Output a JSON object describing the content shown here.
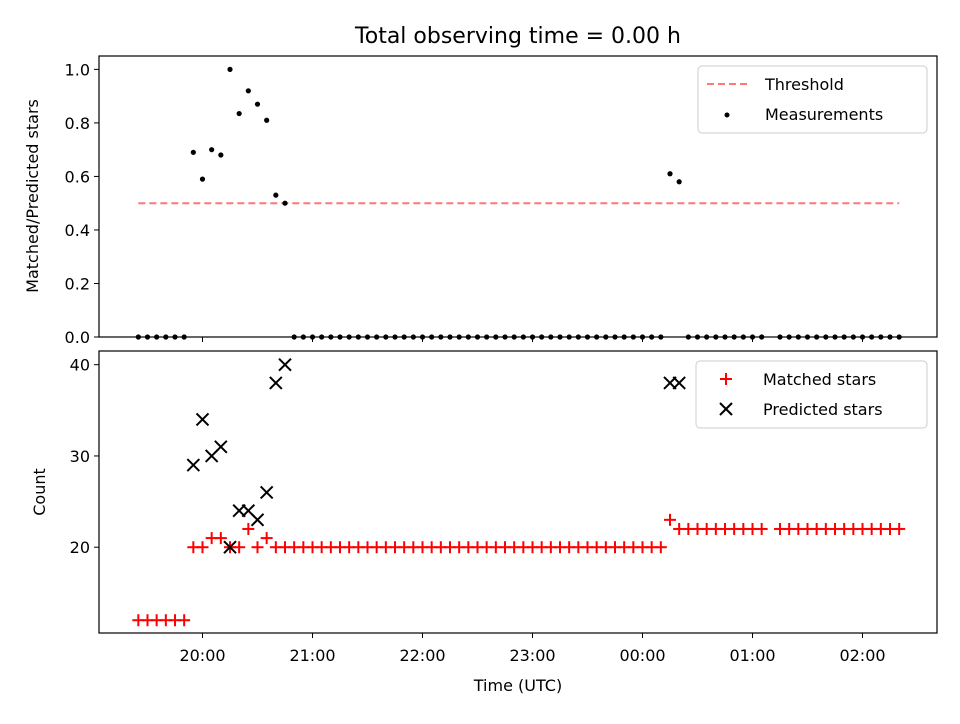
{
  "chart_data": [
    {
      "type": "scatter",
      "title": "Total observing time = 0.00 h",
      "xlabel": "",
      "ylabel": "Matched/Predicted stars",
      "ylim": [
        0,
        1.05
      ],
      "yticks": [
        "0.0",
        "0.2",
        "0.4",
        "0.6",
        "0.8",
        "1.0"
      ],
      "ytick_values": [
        0,
        0.2,
        0.4,
        0.6,
        0.8,
        1.0
      ],
      "legend_position": "upper right",
      "threshold": {
        "name": "Threshold",
        "value": 0.5,
        "x_start": "19:25",
        "x_end": "02:20",
        "color": "#ff7777"
      },
      "series": [
        {
          "name": "Measurements",
          "color": "#000000",
          "marker": "dot",
          "points": [
            [
              "19:25",
              0
            ],
            [
              "19:30",
              0
            ],
            [
              "19:35",
              0
            ],
            [
              "19:40",
              0
            ],
            [
              "19:45",
              0
            ],
            [
              "19:50",
              0
            ],
            [
              "19:55",
              0.69
            ],
            [
              "20:00",
              0.59
            ],
            [
              "20:05",
              0.7
            ],
            [
              "20:10",
              0.68
            ],
            [
              "20:15",
              1.0
            ],
            [
              "20:20",
              0.835
            ],
            [
              "20:25",
              0.92
            ],
            [
              "20:30",
              0.87
            ],
            [
              "20:35",
              0.81
            ],
            [
              "20:40",
              0.53
            ],
            [
              "20:45",
              0.5
            ],
            [
              "20:50",
              0
            ],
            [
              "20:55",
              0
            ],
            [
              "21:00",
              0
            ],
            [
              "21:05",
              0
            ],
            [
              "21:10",
              0
            ],
            [
              "21:15",
              0
            ],
            [
              "21:20",
              0
            ],
            [
              "21:25",
              0
            ],
            [
              "21:30",
              0
            ],
            [
              "21:35",
              0
            ],
            [
              "21:40",
              0
            ],
            [
              "21:45",
              0
            ],
            [
              "21:50",
              0
            ],
            [
              "21:55",
              0
            ],
            [
              "22:00",
              0
            ],
            [
              "22:05",
              0
            ],
            [
              "22:10",
              0
            ],
            [
              "22:15",
              0
            ],
            [
              "22:20",
              0
            ],
            [
              "22:25",
              0
            ],
            [
              "22:30",
              0
            ],
            [
              "22:35",
              0
            ],
            [
              "22:40",
              0
            ],
            [
              "22:45",
              0
            ],
            [
              "22:50",
              0
            ],
            [
              "22:55",
              0
            ],
            [
              "23:00",
              0
            ],
            [
              "23:05",
              0
            ],
            [
              "23:10",
              0
            ],
            [
              "23:15",
              0
            ],
            [
              "23:20",
              0
            ],
            [
              "23:25",
              0
            ],
            [
              "23:30",
              0
            ],
            [
              "23:35",
              0
            ],
            [
              "23:40",
              0
            ],
            [
              "23:45",
              0
            ],
            [
              "23:50",
              0
            ],
            [
              "23:55",
              0
            ],
            [
              "00:00",
              0
            ],
            [
              "00:05",
              0
            ],
            [
              "00:10",
              0
            ],
            [
              "00:15",
              0.61
            ],
            [
              "00:20",
              0.58
            ],
            [
              "00:25",
              0
            ],
            [
              "00:30",
              0
            ],
            [
              "00:35",
              0
            ],
            [
              "00:40",
              0
            ],
            [
              "00:45",
              0
            ],
            [
              "00:50",
              0
            ],
            [
              "00:55",
              0
            ],
            [
              "01:00",
              0
            ],
            [
              "01:05",
              0
            ],
            [
              "01:15",
              0
            ],
            [
              "01:20",
              0
            ],
            [
              "01:25",
              0
            ],
            [
              "01:30",
              0
            ],
            [
              "01:35",
              0
            ],
            [
              "01:40",
              0
            ],
            [
              "01:45",
              0
            ],
            [
              "01:50",
              0
            ],
            [
              "01:55",
              0
            ],
            [
              "02:00",
              0
            ],
            [
              "02:05",
              0
            ],
            [
              "02:10",
              0
            ],
            [
              "02:15",
              0
            ],
            [
              "02:20",
              0
            ]
          ]
        }
      ]
    },
    {
      "type": "scatter",
      "title": "",
      "xlabel": "Time (UTC)",
      "ylabel": "Count",
      "ylim": [
        10.6,
        41.5
      ],
      "yticks": [
        "20",
        "30",
        "40"
      ],
      "ytick_values": [
        20,
        30,
        40
      ],
      "xticks": [
        "20:00",
        "21:00",
        "22:00",
        "23:00",
        "00:00",
        "01:00",
        "02:00"
      ],
      "legend_position": "upper right",
      "series": [
        {
          "name": "Matched stars",
          "color": "#ff0000",
          "marker": "plus",
          "points": [
            [
              "19:25",
              12
            ],
            [
              "19:30",
              12
            ],
            [
              "19:35",
              12
            ],
            [
              "19:40",
              12
            ],
            [
              "19:45",
              12
            ],
            [
              "19:50",
              12
            ],
            [
              "19:55",
              20
            ],
            [
              "20:00",
              20
            ],
            [
              "20:05",
              21
            ],
            [
              "20:10",
              21
            ],
            [
              "20:15",
              20
            ],
            [
              "20:20",
              20
            ],
            [
              "20:25",
              22
            ],
            [
              "20:30",
              20
            ],
            [
              "20:35",
              21
            ],
            [
              "20:40",
              20
            ],
            [
              "20:45",
              20
            ],
            [
              "20:50",
              20
            ],
            [
              "20:55",
              20
            ],
            [
              "21:00",
              20
            ],
            [
              "21:05",
              20
            ],
            [
              "21:10",
              20
            ],
            [
              "21:15",
              20
            ],
            [
              "21:20",
              20
            ],
            [
              "21:25",
              20
            ],
            [
              "21:30",
              20
            ],
            [
              "21:35",
              20
            ],
            [
              "21:40",
              20
            ],
            [
              "21:45",
              20
            ],
            [
              "21:50",
              20
            ],
            [
              "21:55",
              20
            ],
            [
              "22:00",
              20
            ],
            [
              "22:05",
              20
            ],
            [
              "22:10",
              20
            ],
            [
              "22:15",
              20
            ],
            [
              "22:20",
              20
            ],
            [
              "22:25",
              20
            ],
            [
              "22:30",
              20
            ],
            [
              "22:35",
              20
            ],
            [
              "22:40",
              20
            ],
            [
              "22:45",
              20
            ],
            [
              "22:50",
              20
            ],
            [
              "22:55",
              20
            ],
            [
              "23:00",
              20
            ],
            [
              "23:05",
              20
            ],
            [
              "23:10",
              20
            ],
            [
              "23:15",
              20
            ],
            [
              "23:20",
              20
            ],
            [
              "23:25",
              20
            ],
            [
              "23:30",
              20
            ],
            [
              "23:35",
              20
            ],
            [
              "23:40",
              20
            ],
            [
              "23:45",
              20
            ],
            [
              "23:50",
              20
            ],
            [
              "23:55",
              20
            ],
            [
              "00:00",
              20
            ],
            [
              "00:05",
              20
            ],
            [
              "00:10",
              20
            ],
            [
              "00:15",
              23
            ],
            [
              "00:20",
              22
            ],
            [
              "00:25",
              22
            ],
            [
              "00:30",
              22
            ],
            [
              "00:35",
              22
            ],
            [
              "00:40",
              22
            ],
            [
              "00:45",
              22
            ],
            [
              "00:50",
              22
            ],
            [
              "00:55",
              22
            ],
            [
              "01:00",
              22
            ],
            [
              "01:05",
              22
            ],
            [
              "01:15",
              22
            ],
            [
              "01:20",
              22
            ],
            [
              "01:25",
              22
            ],
            [
              "01:30",
              22
            ],
            [
              "01:35",
              22
            ],
            [
              "01:40",
              22
            ],
            [
              "01:45",
              22
            ],
            [
              "01:50",
              22
            ],
            [
              "01:55",
              22
            ],
            [
              "02:00",
              22
            ],
            [
              "02:05",
              22
            ],
            [
              "02:10",
              22
            ],
            [
              "02:15",
              22
            ],
            [
              "02:20",
              22
            ]
          ]
        },
        {
          "name": "Predicted stars",
          "color": "#000000",
          "marker": "x",
          "points": [
            [
              "19:55",
              29
            ],
            [
              "20:00",
              34
            ],
            [
              "20:05",
              30
            ],
            [
              "20:10",
              31
            ],
            [
              "20:15",
              20
            ],
            [
              "20:20",
              24
            ],
            [
              "20:25",
              24
            ],
            [
              "20:30",
              23
            ],
            [
              "20:35",
              26
            ],
            [
              "20:40",
              38
            ],
            [
              "20:45",
              40
            ],
            [
              "00:15",
              38
            ],
            [
              "00:20",
              38
            ]
          ]
        }
      ]
    }
  ]
}
